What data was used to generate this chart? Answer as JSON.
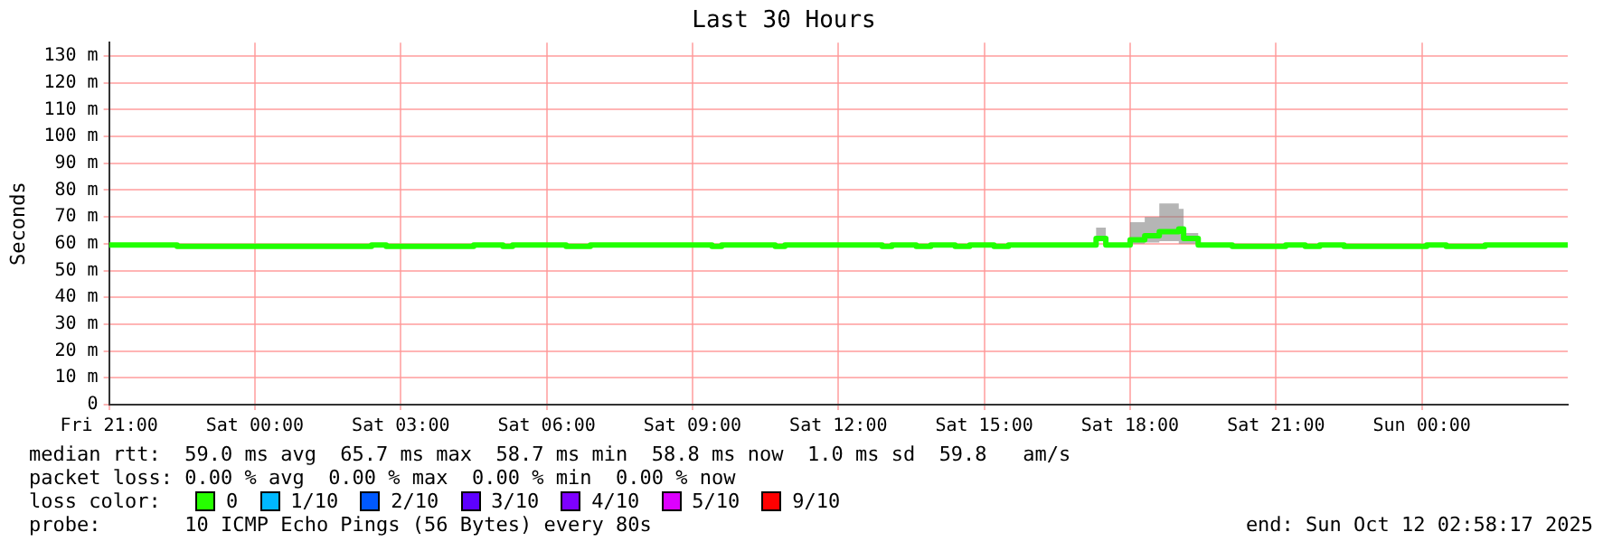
{
  "chart_data": {
    "type": "step",
    "title": "Last 30 Hours",
    "ylabel": "Seconds",
    "xlim": [
      "2025-10-10T21:00",
      "2025-10-12T03:00"
    ],
    "xticks": [
      {
        "value": "2025-10-10T21:00",
        "label": "Fri 21:00"
      },
      {
        "value": "2025-10-11T00:00",
        "label": "Sat 00:00"
      },
      {
        "value": "2025-10-11T03:00",
        "label": "Sat 03:00"
      },
      {
        "value": "2025-10-11T06:00",
        "label": "Sat 06:00"
      },
      {
        "value": "2025-10-11T09:00",
        "label": "Sat 09:00"
      },
      {
        "value": "2025-10-11T12:00",
        "label": "Sat 12:00"
      },
      {
        "value": "2025-10-11T15:00",
        "label": "Sat 15:00"
      },
      {
        "value": "2025-10-11T18:00",
        "label": "Sat 18:00"
      },
      {
        "value": "2025-10-11T21:00",
        "label": "Sat 21:00"
      },
      {
        "value": "2025-10-12T00:00",
        "label": "Sun 00:00"
      }
    ],
    "ylim": [
      0,
      135
    ],
    "yticks": [
      0,
      {
        "value": 10,
        "label": "10 m"
      },
      {
        "value": 20,
        "label": "20 m"
      },
      {
        "value": 30,
        "label": "30 m"
      },
      {
        "value": 40,
        "label": "40 m"
      },
      {
        "value": 50,
        "label": "50 m"
      },
      {
        "value": 60,
        "label": "60 m"
      },
      {
        "value": 70,
        "label": "70 m"
      },
      {
        "value": 80,
        "label": "80 m"
      },
      {
        "value": 90,
        "label": "90 m"
      },
      {
        "value": 100,
        "label": "100 m"
      },
      {
        "value": 110,
        "label": "110 m"
      },
      {
        "value": 120,
        "label": "120 m"
      },
      {
        "value": 130,
        "label": "130 m"
      }
    ],
    "grid": true,
    "legend": false,
    "series": [
      {
        "color": "#20ff00",
        "x": [
          "2025-10-10T21:00",
          "2025-10-10T22:24",
          "2025-10-11T02:24",
          "2025-10-11T02:42",
          "2025-10-11T04:30",
          "2025-10-11T05:06",
          "2025-10-11T05:18",
          "2025-10-11T06:24",
          "2025-10-11T06:54",
          "2025-10-11T09:24",
          "2025-10-11T09:36",
          "2025-10-11T10:42",
          "2025-10-11T10:54",
          "2025-10-11T12:54",
          "2025-10-11T13:06",
          "2025-10-11T13:36",
          "2025-10-11T13:54",
          "2025-10-11T14:24",
          "2025-10-11T14:42",
          "2025-10-11T15:12",
          "2025-10-11T15:30",
          "2025-10-11T17:18",
          "2025-10-11T17:30",
          "2025-10-11T18:00",
          "2025-10-11T18:18",
          "2025-10-11T18:36",
          "2025-10-11T19:00",
          "2025-10-11T19:06",
          "2025-10-11T19:24",
          "2025-10-11T20:06",
          "2025-10-11T21:12",
          "2025-10-11T21:36",
          "2025-10-11T21:54",
          "2025-10-11T22:24",
          "2025-10-12T00:06",
          "2025-10-12T00:30",
          "2025-10-12T01:18",
          "2025-10-12T03:00"
        ],
        "values": [
          59.5,
          59,
          59.5,
          59,
          59.5,
          59,
          59.5,
          59,
          59.5,
          59,
          59.5,
          59,
          59.5,
          59,
          59.5,
          59,
          59.5,
          59,
          59.5,
          59,
          59.5,
          62,
          59.5,
          61.5,
          63,
          64.5,
          65.5,
          62,
          59.5,
          59,
          59.5,
          59,
          59.5,
          59,
          59.5,
          59,
          59.5,
          59.5
        ],
        "lower": [
          59.5,
          59,
          59.5,
          59,
          59.5,
          59,
          59.5,
          59,
          59.5,
          59,
          59.5,
          59,
          59.5,
          59,
          59.5,
          59,
          59.5,
          59,
          59.5,
          59,
          59.5,
          61,
          59.5,
          60,
          60.5,
          61,
          60,
          60,
          59.5,
          59,
          59.5,
          59,
          59.5,
          59,
          59.5,
          59,
          59.5,
          59.5
        ],
        "upper": [
          59.5,
          59,
          59.5,
          59,
          59.5,
          59,
          59.5,
          59,
          59.5,
          59,
          59.5,
          59,
          59.5,
          59,
          59.5,
          59,
          59.5,
          59,
          59.5,
          59,
          59.5,
          66,
          59.5,
          68,
          70,
          75,
          73,
          64,
          59.5,
          59,
          59.5,
          59,
          59.5,
          59,
          59.5,
          59,
          59.5,
          59.5
        ]
      }
    ],
    "annotations": [
      "median rtt:  59.0 ms avg  65.7 ms max  58.7 ms min  58.8 ms now  1.0 ms sd  59.8   am/s",
      "packet loss: 0.00 % avg  0.00 % max  0.00 % min  0.00 % now",
      "loss color:",
      "0",
      "1/10",
      "2/10",
      "3/10",
      "4/10",
      "5/10",
      "9/10",
      "probe:       10 ICMP Echo Pings (56 Bytes) every 80s",
      "end: Sun Oct 12 02:58:17 2025"
    ]
  }
}
